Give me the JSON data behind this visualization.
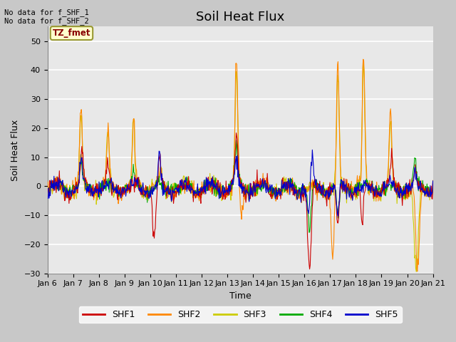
{
  "title": "Soil Heat Flux",
  "ylabel": "Soil Heat Flux",
  "xlabel": "Time",
  "no_data_text": [
    "No data for f_SHF_1",
    "No data for f_SHF_2"
  ],
  "tz_label": "TZ_fmet",
  "ylim": [
    -30,
    55
  ],
  "yticks": [
    -30,
    -20,
    -10,
    0,
    10,
    20,
    30,
    40,
    50
  ],
  "xtick_labels": [
    "Jan 6",
    "Jan 7",
    "Jan 8",
    "Jan 9",
    "Jan 10",
    "Jan 11",
    "Jan 12",
    "Jan 13",
    "Jan 14",
    "Jan 15",
    "Jan 16",
    "Jan 17",
    "Jan 18",
    "Jan 19",
    "Jan 20",
    "Jan 21"
  ],
  "legend": [
    {
      "label": "SHF1",
      "color": "#cc0000"
    },
    {
      "label": "SHF2",
      "color": "#ff8800"
    },
    {
      "label": "SHF3",
      "color": "#cccc00"
    },
    {
      "label": "SHF4",
      "color": "#00aa00"
    },
    {
      "label": "SHF5",
      "color": "#0000cc"
    }
  ],
  "fig_bg_color": "#c8c8c8",
  "plot_bg_color": "#e8e8e8",
  "title_fontsize": 13,
  "axis_fontsize": 9,
  "tick_fontsize": 8
}
